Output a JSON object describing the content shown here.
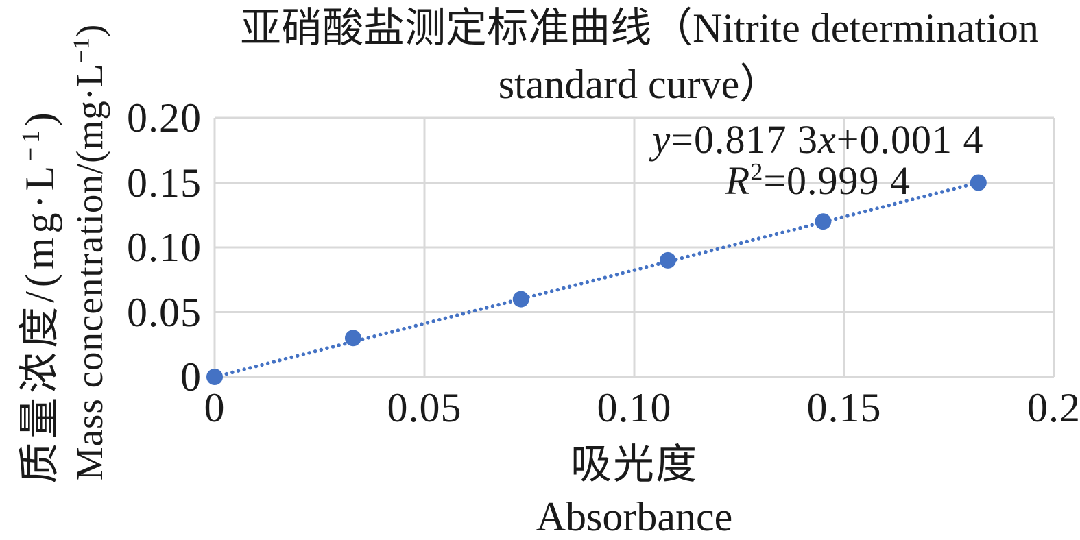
{
  "chart_data": {
    "type": "scatter",
    "title": "亚硝酸盐测定标准曲线（Nitrite determination standard curve）",
    "title_lines": [
      "亚硝酸盐测定标准曲线（Nitrite determination",
      "standard curve）"
    ],
    "xlabel": "吸光度 Absorbance",
    "ylabel": "质量浓度/(mg·L⁻¹) Mass concentration/(mg·L⁻¹)",
    "xlabel_zh": "吸光度",
    "xlabel_en": "Absorbance",
    "ylabel_zh_segments": [
      {
        "t": "质量浓度/(mg·L"
      },
      {
        "t": "−1",
        "sup": true
      },
      {
        "t": ")"
      }
    ],
    "ylabel_en_segments": [
      {
        "t": "Mass concentration/(mg·L"
      },
      {
        "t": "−1",
        "sup": true
      },
      {
        "t": ")"
      }
    ],
    "x": [
      0,
      0.033,
      0.073,
      0.108,
      0.145,
      0.182
    ],
    "y": [
      0,
      0.03,
      0.06,
      0.09,
      0.12,
      0.15
    ],
    "xlim": [
      0,
      0.2
    ],
    "ylim": [
      0,
      0.2
    ],
    "x_ticks": [
      {
        "v": 0,
        "label": "0"
      },
      {
        "v": 0.05,
        "label": "0.05"
      },
      {
        "v": 0.1,
        "label": "0.10"
      },
      {
        "v": 0.15,
        "label": "0.15"
      },
      {
        "v": 0.2,
        "label": "0.2"
      }
    ],
    "y_ticks": [
      {
        "v": 0,
        "label": "0"
      },
      {
        "v": 0.05,
        "label": "0.05"
      },
      {
        "v": 0.1,
        "label": "0.10"
      },
      {
        "v": 0.15,
        "label": "0.15"
      },
      {
        "v": 0.2,
        "label": "0.20"
      }
    ],
    "grid": true,
    "legend": "none",
    "trendline": {
      "style": "dotted",
      "slope": 0.8173,
      "intercept": 0.0014,
      "r_squared": 0.9994,
      "equation_text": "y=0.817 3x+0.001 4",
      "r_squared_text": "R²=0.999 4"
    },
    "equation_lines": [
      [
        {
          "t": "y",
          "i": true
        },
        {
          "t": "=0.817 3"
        },
        {
          "t": "x",
          "i": true
        },
        {
          "t": "+0.001 4"
        }
      ],
      [
        {
          "t": "R",
          "i": true
        },
        {
          "t": "2",
          "sup": true
        },
        {
          "t": "=0.999 4"
        }
      ]
    ],
    "colors": {
      "marker": "#4472C4",
      "trendline": "#4472C4",
      "gridline": "#D9D9D9",
      "text": "#1a1a1a",
      "background": "#ffffff"
    }
  }
}
